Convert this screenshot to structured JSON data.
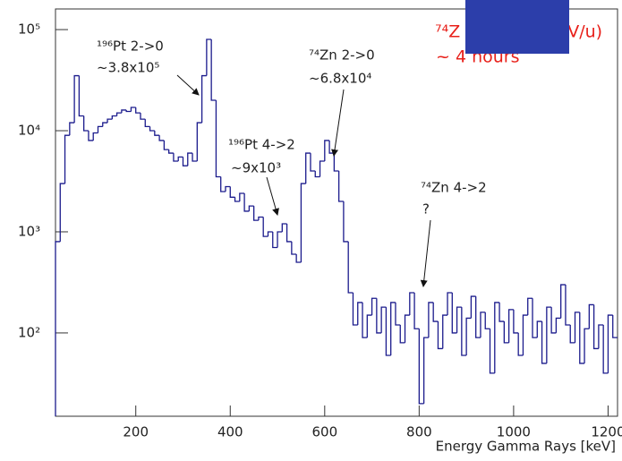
{
  "chart_data": {
    "type": "histogram",
    "x_label": "Energy Gamma Rays [keV]",
    "log_y": true,
    "grid": false,
    "color": "#1a1a8c",
    "xlim": [
      30,
      1220
    ],
    "ylim": [
      15,
      160000
    ],
    "xticks": [
      200,
      400,
      600,
      800,
      1000,
      1200
    ],
    "yticks": [
      {
        "value": 100,
        "label": "10²"
      },
      {
        "value": 1000,
        "label": "10³"
      },
      {
        "value": 10000,
        "label": "10⁴"
      },
      {
        "value": 100000,
        "label": "10⁵"
      }
    ],
    "bins": [
      30,
      40,
      50,
      60,
      70,
      80,
      90,
      100,
      110,
      120,
      130,
      140,
      150,
      160,
      170,
      180,
      190,
      200,
      210,
      220,
      230,
      240,
      250,
      260,
      270,
      280,
      290,
      300,
      310,
      320,
      330,
      340,
      350,
      360,
      370,
      380,
      390,
      400,
      410,
      420,
      430,
      440,
      450,
      460,
      470,
      480,
      490,
      500,
      510,
      520,
      530,
      540,
      550,
      560,
      570,
      580,
      590,
      600,
      610,
      620,
      630,
      640,
      650,
      660,
      670,
      680,
      690,
      700,
      710,
      720,
      730,
      740,
      750,
      760,
      770,
      780,
      790,
      800,
      810,
      820,
      830,
      840,
      850,
      860,
      870,
      880,
      890,
      900,
      910,
      920,
      930,
      940,
      950,
      960,
      970,
      980,
      990,
      1000,
      1010,
      1020,
      1030,
      1040,
      1050,
      1060,
      1070,
      1080,
      1090,
      1100,
      1110,
      1120,
      1130,
      1140,
      1150,
      1160,
      1170,
      1180,
      1190,
      1200,
      1210,
      1220
    ],
    "values": [
      800,
      3000,
      9000,
      12000,
      35000,
      14000,
      10000,
      8000,
      9500,
      11000,
      12000,
      13000,
      14000,
      15000,
      16000,
      15500,
      17000,
      15000,
      13000,
      11000,
      10000,
      9000,
      8000,
      6500,
      6000,
      5000,
      5500,
      4500,
      6000,
      5000,
      12000,
      35000,
      80000,
      20000,
      3500,
      2500,
      2800,
      2200,
      2000,
      2400,
      1600,
      1800,
      1300,
      1400,
      900,
      1000,
      700,
      1000,
      1200,
      800,
      600,
      500,
      3000,
      6000,
      4000,
      3500,
      5000,
      8000,
      6000,
      4000,
      2000,
      800,
      250,
      120,
      200,
      90,
      150,
      220,
      100,
      180,
      60,
      200,
      120,
      80,
      150,
      250,
      110,
      20,
      90,
      200,
      130,
      70,
      150,
      250,
      100,
      180,
      60,
      140,
      230,
      90,
      160,
      110,
      40,
      200,
      130,
      80,
      170,
      100,
      60,
      150,
      220,
      90,
      130,
      50,
      180,
      100,
      140,
      300,
      120,
      80,
      160,
      50,
      110,
      190,
      70,
      120,
      40,
      150,
      90
    ],
    "annotations": [
      {
        "text": "¹⁹⁶Pt 2->0",
        "note": "~3.8x10⁵"
      },
      {
        "text": "⁷⁴Zn 2->0",
        "note": "~6.8x10⁴"
      },
      {
        "text": "¹⁹⁶Pt 4->2",
        "note": "~9x10³"
      },
      {
        "text": "⁷⁴Zn 4->2",
        "note": "?"
      }
    ],
    "overlay_text": [
      "⁷⁴Z",
      "5 MeV/u)",
      "~ 4 hours"
    ]
  }
}
